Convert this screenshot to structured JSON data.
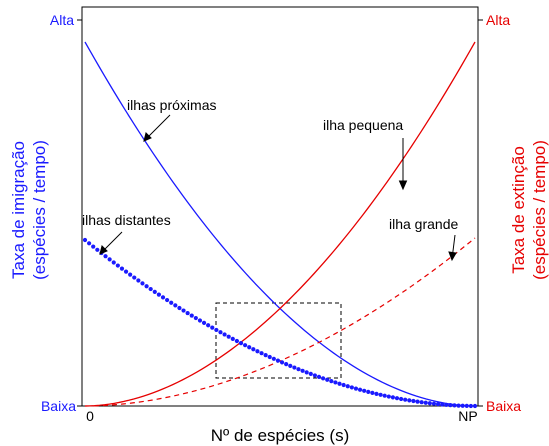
{
  "colors": {
    "immigration": "#1a1aff",
    "extinction": "#e60000",
    "axis": "#000000",
    "box": "#000000"
  },
  "left_axis": {
    "label_line1": "Taxa de imigração",
    "label_line2": "(espécies / tempo)",
    "high": "Alta",
    "low": "Baixa"
  },
  "right_axis": {
    "label_line1": "Taxa de extinção",
    "label_line2": "(espécies / tempo)",
    "high": "Alta",
    "low": "Baixa"
  },
  "x_axis": {
    "label": "Nº de espécies (s)",
    "tick_start": "0",
    "tick_end": "NP"
  },
  "annotations": {
    "near": "ilhas próximas",
    "distant": "ilhas distantes",
    "small": "ilha pequena",
    "large": "ilha grande"
  }
}
